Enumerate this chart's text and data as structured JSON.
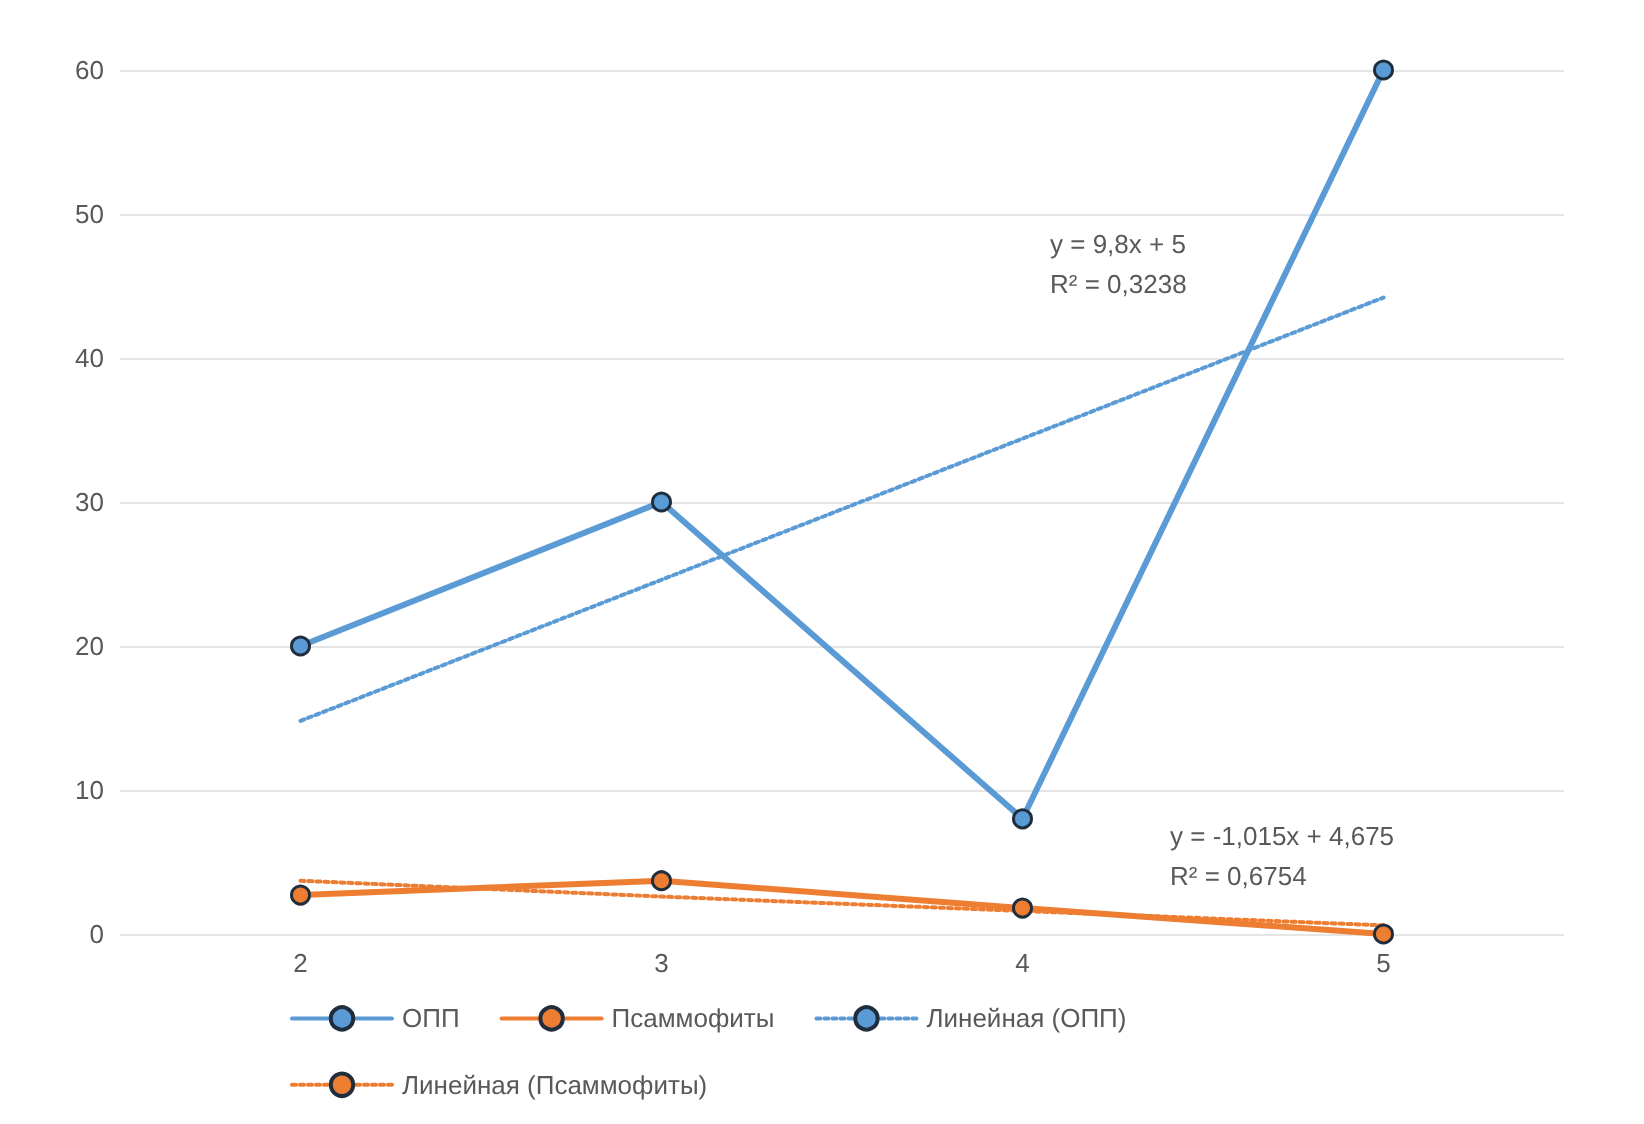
{
  "chart_data": {
    "type": "line",
    "categories": [
      "2",
      "3",
      "4",
      "5"
    ],
    "series": [
      {
        "name": "ОПП",
        "color": "#5b9bd5",
        "values": [
          20,
          30,
          8,
          60
        ],
        "marker": "circle",
        "line_style": "solid"
      },
      {
        "name": "Псаммофиты",
        "color": "#ed7d31",
        "values": [
          2.7,
          3.7,
          1.8,
          0
        ],
        "marker": "circle",
        "line_style": "solid"
      },
      {
        "name": "Линейная (ОПП)",
        "color": "#5b9bd5",
        "values": [
          14.8,
          24.6,
          34.4,
          44.2
        ],
        "marker": "none",
        "line_style": "dotted"
      },
      {
        "name": "Линейная (Псаммофиты)",
        "color": "#ed7d31",
        "values": [
          3.7,
          2.6,
          1.6,
          0.6
        ],
        "marker": "none",
        "line_style": "dotted"
      }
    ],
    "ylim": [
      0,
      60
    ],
    "yticks": [
      0,
      10,
      20,
      30,
      40,
      50,
      60
    ],
    "grid": "y",
    "legend": "bottom",
    "annotations": [
      "y = 9,8x + 5\nR² = 0,3238",
      "y = -1,015x + 4,675\nR² = 0,6754"
    ]
  }
}
